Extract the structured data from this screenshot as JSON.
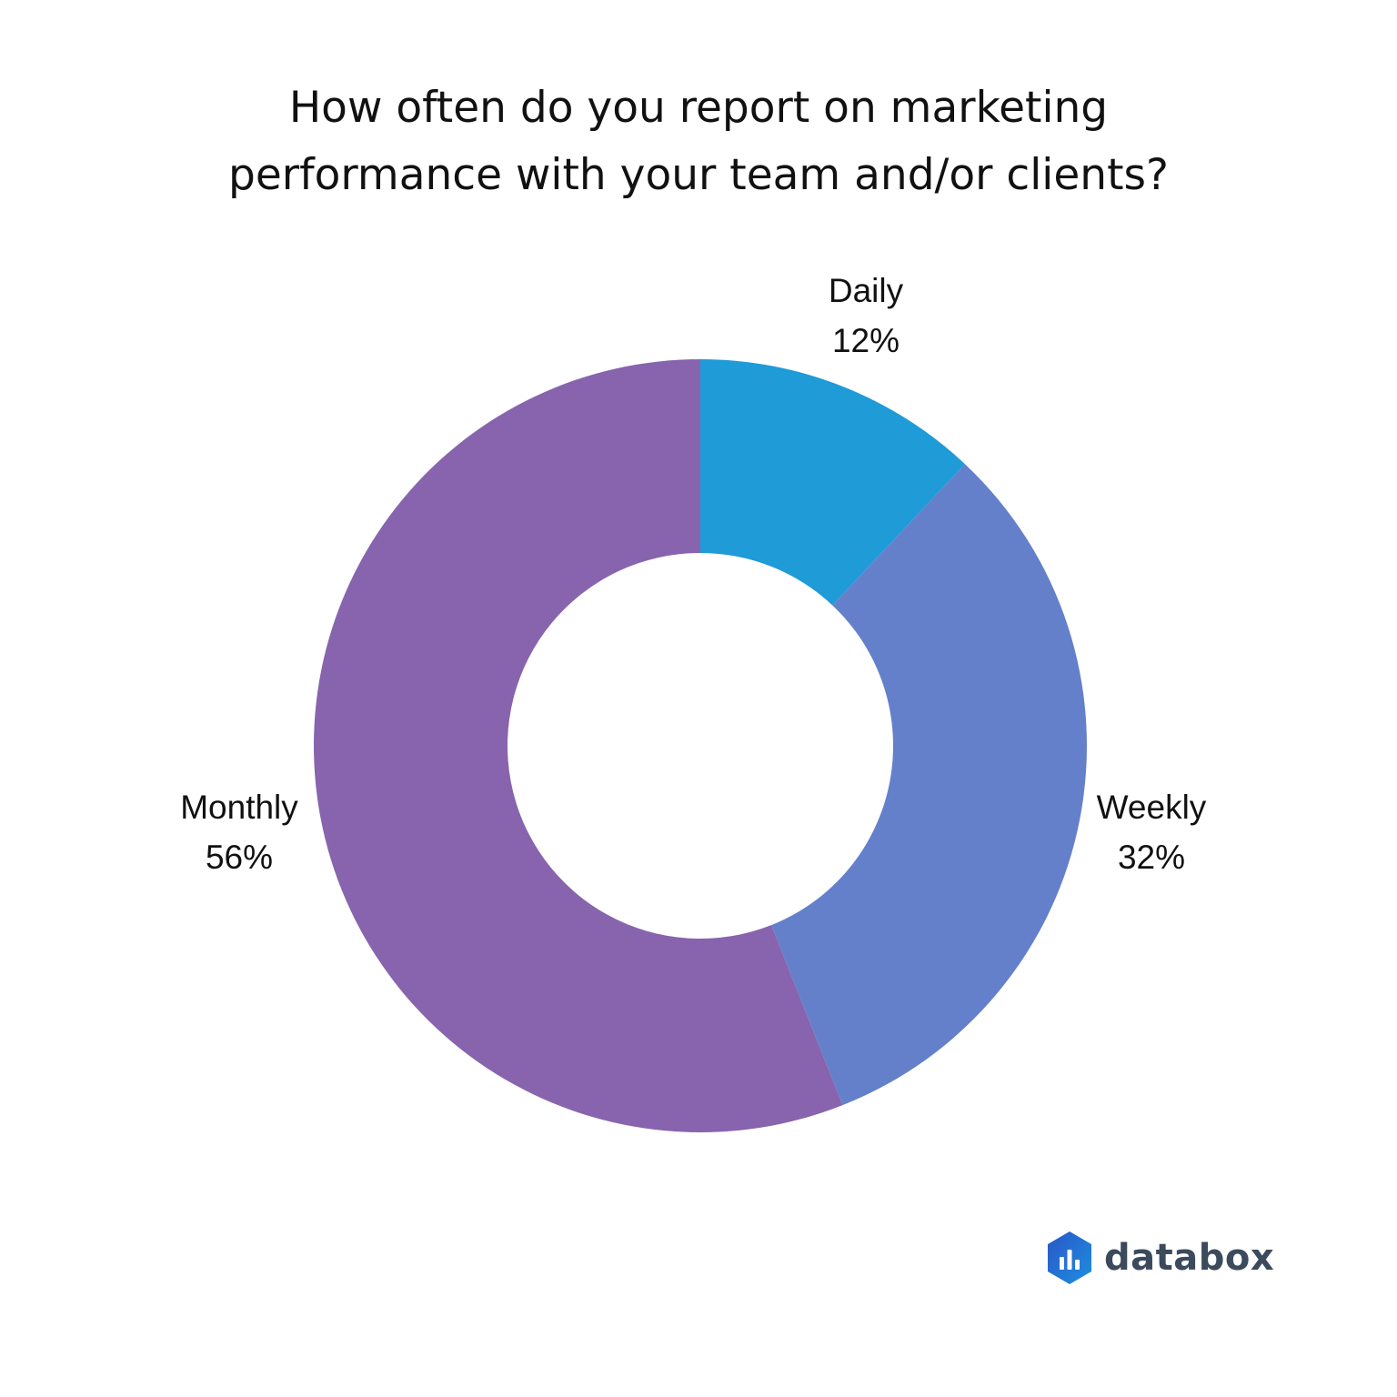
{
  "chart_data": {
    "type": "pie",
    "variant": "donut",
    "title_lines": [
      "How often do you report on marketing",
      "performance with your team and/or clients?"
    ],
    "slices": [
      {
        "label": "Daily",
        "value": 12,
        "value_label": "12%",
        "color": "#1f9bd7"
      },
      {
        "label": "Weekly",
        "value": 32,
        "value_label": "32%",
        "color": "#6480cb"
      },
      {
        "label": "Monthly",
        "value": 56,
        "value_label": "56%",
        "color": "#8764ad"
      }
    ],
    "start_angle": "12 o'clock",
    "direction": "clockwise",
    "legend": "none"
  },
  "brand": {
    "name": "databox",
    "icon": "databox-logo-icon",
    "icon_colors": [
      "#2a56c6",
      "#1e8fe1"
    ],
    "text_color": "#3b4a5c"
  }
}
